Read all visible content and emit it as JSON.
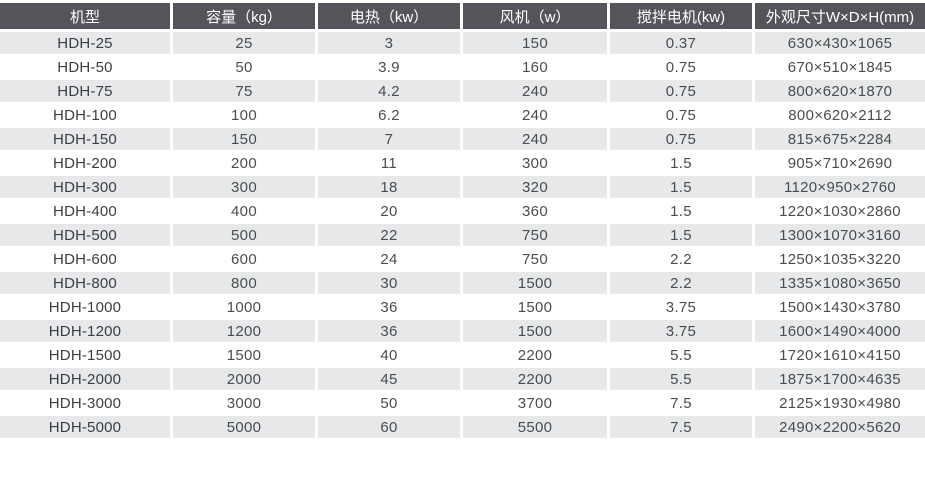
{
  "table": {
    "columns": [
      "机型",
      "容量（kg）",
      "电热（kw）",
      "风机（w）",
      "搅拌电机(kw)",
      "外观尺寸W×D×H(mm)"
    ],
    "rows": [
      [
        "HDH-25",
        "25",
        "3",
        "150",
        "0.37",
        "630×430×1065"
      ],
      [
        "HDH-50",
        "50",
        "3.9",
        "160",
        "0.75",
        "670×510×1845"
      ],
      [
        "HDH-75",
        "75",
        "4.2",
        "240",
        "0.75",
        "800×620×1870"
      ],
      [
        "HDH-100",
        "100",
        "6.2",
        "240",
        "0.75",
        "800×620×2112"
      ],
      [
        "HDH-150",
        "150",
        "7",
        "240",
        "0.75",
        "815×675×2284"
      ],
      [
        "HDH-200",
        "200",
        "11",
        "300",
        "1.5",
        "905×710×2690"
      ],
      [
        "HDH-300",
        "300",
        "18",
        "320",
        "1.5",
        "1120×950×2760"
      ],
      [
        "HDH-400",
        "400",
        "20",
        "360",
        "1.5",
        "1220×1030×2860"
      ],
      [
        "HDH-500",
        "500",
        "22",
        "750",
        "1.5",
        "1300×1070×3160"
      ],
      [
        "HDH-600",
        "600",
        "24",
        "750",
        "2.2",
        "1250×1035×3220"
      ],
      [
        "HDH-800",
        "800",
        "30",
        "1500",
        "2.2",
        "1335×1080×3650"
      ],
      [
        "HDH-1000",
        "1000",
        "36",
        "1500",
        "3.75",
        "1500×1430×3780"
      ],
      [
        "HDH-1200",
        "1200",
        "36",
        "1500",
        "3.75",
        "1600×1490×4000"
      ],
      [
        "HDH-1500",
        "1500",
        "40",
        "2200",
        "5.5",
        "1720×1610×4150"
      ],
      [
        "HDH-2000",
        "2000",
        "45",
        "2200",
        "5.5",
        "1875×1700×4635"
      ],
      [
        "HDH-3000",
        "3000",
        "50",
        "3700",
        "7.5",
        "2125×1930×4980"
      ],
      [
        "HDH-5000",
        "5000",
        "60",
        "5500",
        "7.5",
        "2490×2200×5620"
      ]
    ]
  },
  "colors": {
    "header_bg": "#54555A",
    "header_text": "#FFFFFF",
    "model_col_bg": "#ACB1B5",
    "row_odd_bg": "#E6E8E9",
    "row_even_bg": "#FFFFFF",
    "cell_text": "#4A4D50",
    "separator": "#FFFFFF"
  }
}
